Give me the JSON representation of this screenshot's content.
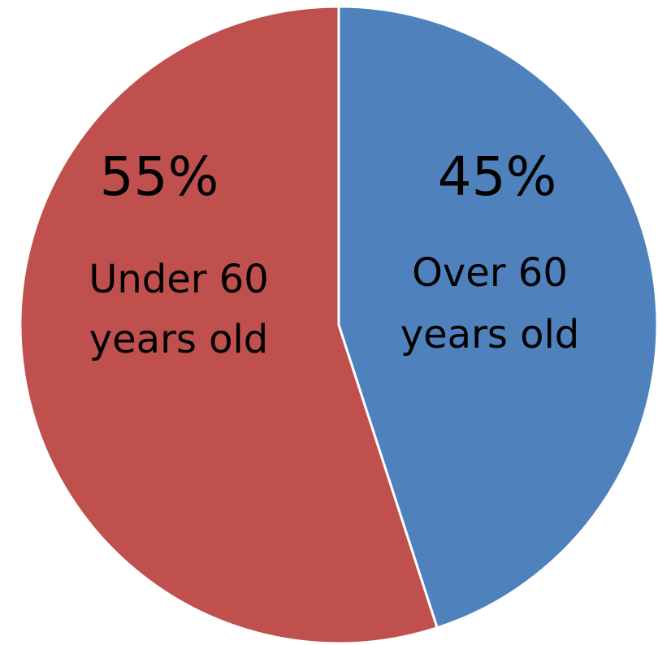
{
  "chart_data": {
    "type": "pie",
    "slices": [
      {
        "label_lines": [
          "Over 60",
          "years old"
        ],
        "value": 45,
        "value_label": "45%",
        "color": "#4F81BD"
      },
      {
        "label_lines": [
          "Under 60",
          "years old"
        ],
        "value": 55,
        "value_label": "55%",
        "color": "#C0504D"
      }
    ],
    "start_angle_deg": 0,
    "direction": "clockwise",
    "legend": "none",
    "labels_inside": true
  }
}
